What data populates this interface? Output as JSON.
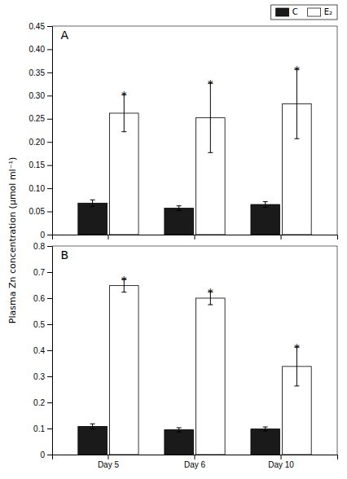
{
  "chart_data": [
    {
      "type": "bar",
      "title": "A",
      "ylabel": "Plasma Zn concentration (μmol ml⁻¹)",
      "categories": [
        "Day 5",
        "Day 6",
        "Day 10"
      ],
      "series": [
        {
          "name": "C",
          "color": "#1a1a1a",
          "values": [
            0.068,
            0.057,
            0.065
          ],
          "errors": [
            0.007,
            0.005,
            0.006
          ]
        },
        {
          "name": "E₂",
          "color": "#ffffff",
          "values": [
            0.262,
            0.252,
            0.282
          ],
          "errors": [
            0.04,
            0.075,
            0.075
          ],
          "annotations": [
            "*",
            "*",
            "*"
          ]
        }
      ],
      "ylim": [
        0,
        0.45
      ],
      "yticks": [
        0,
        0.05,
        {
          "value": 0.1,
          "label": "0.10"
        },
        0.15,
        {
          "value": 0.2,
          "label": "0.20"
        },
        0.25,
        {
          "value": 0.3,
          "label": "0.30"
        },
        0.35,
        {
          "value": 0.4,
          "label": "0.40"
        },
        0.45
      ],
      "grid": false,
      "legend": "upper right",
      "tick_labels": "y"
    },
    {
      "type": "bar",
      "title": "B",
      "categories": [
        "Day 5",
        "Day 6",
        "Day 10"
      ],
      "series": [
        {
          "color": "#1a1a1a",
          "values": [
            0.108,
            0.095,
            0.098
          ],
          "errors": [
            0.01,
            0.008,
            0.008
          ]
        },
        {
          "color": "#ffffff",
          "values": [
            0.648,
            0.6,
            0.338
          ],
          "errors": [
            0.025,
            0.025,
            0.075
          ],
          "annotations": [
            "*",
            "*",
            "*"
          ]
        }
      ],
      "ylim": [
        0,
        0.8
      ],
      "yticks": [
        0,
        0.1,
        0.2,
        0.3,
        0.4,
        0.5,
        0.6,
        0.7,
        0.8
      ],
      "grid": false
    }
  ]
}
